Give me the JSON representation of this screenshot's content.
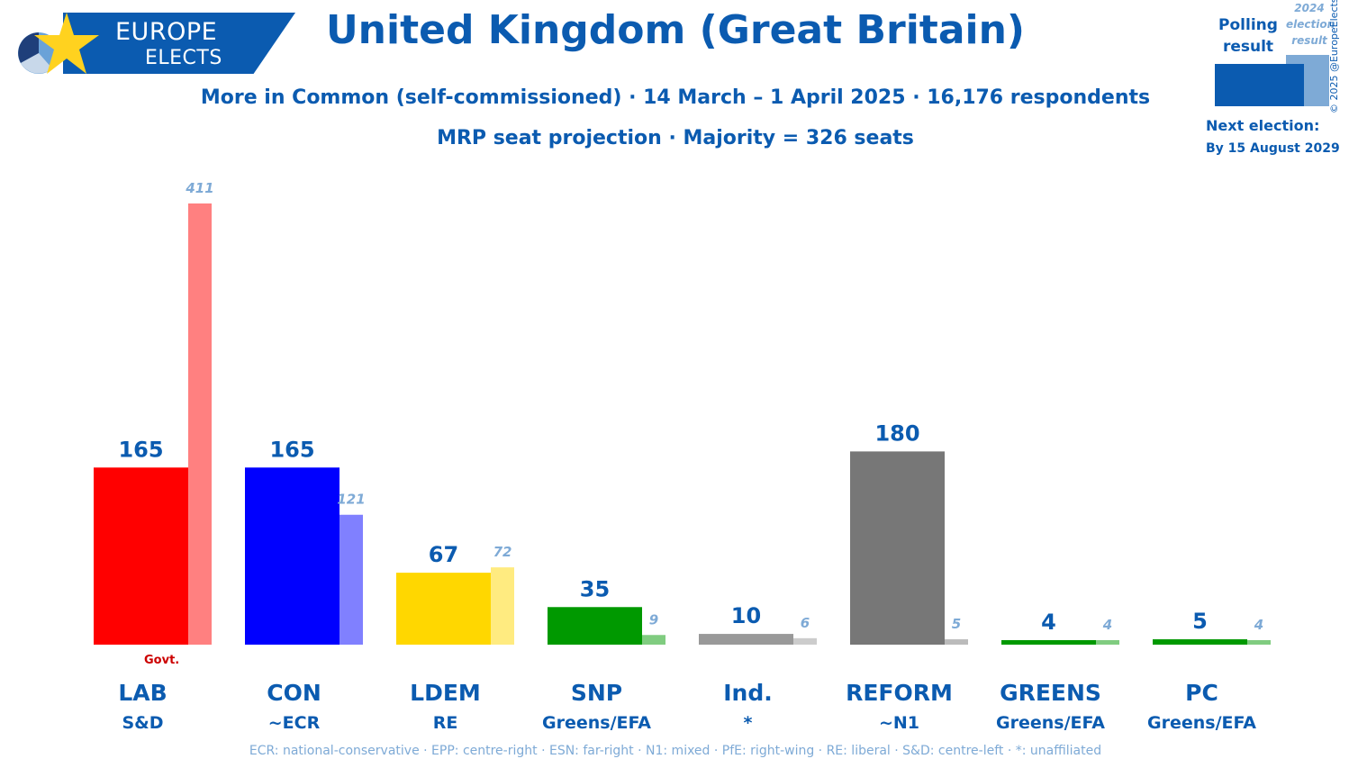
{
  "logo": {
    "line1": "EUROPE",
    "line2": "ELECTS"
  },
  "title": "United Kingdom (Great Britain)",
  "subtitle": "More in Common (self-commissioned) · 14 March – 1 April 2025 · 16,176 respondents",
  "subtitle2": "MRP seat projection · Majority = 326 seats",
  "legend": {
    "polling": "Polling result",
    "previous": "2024 election result"
  },
  "copyright": "© 2025 @EuropeElects",
  "next_election": {
    "label": "Next election:",
    "date": "By 15 August 2029"
  },
  "govt_label": "Govt.",
  "footnote": "ECR: national-conservative · EPP: centre-right · ESN: far-right · N1: mixed · PfE: right-wing · RE: liberal · S&D: centre-left · *: unaffiliated",
  "chart_data": {
    "type": "bar",
    "categories": [
      "LAB",
      "CON",
      "LDEM",
      "SNP",
      "Ind.",
      "REFORM",
      "GREENS",
      "PC"
    ],
    "groups": [
      "S&D",
      "~ECR",
      "RE",
      "Greens/EFA",
      "*",
      "~N1",
      "Greens/EFA",
      "Greens/EFA"
    ],
    "series": [
      {
        "name": "Polling result",
        "values": [
          165,
          165,
          67,
          35,
          10,
          180,
          4,
          5
        ]
      },
      {
        "name": "2024 election result",
        "values": [
          411,
          121,
          72,
          9,
          6,
          5,
          4,
          4
        ]
      }
    ],
    "colors": [
      "#ff0000",
      "#0000ff",
      "#ffd700",
      "#009900",
      "#999999",
      "#777777",
      "#009900",
      "#009900"
    ],
    "prev_colors": [
      "#ff8080",
      "#8080ff",
      "#ffeb80",
      "#80cc80",
      "#cccccc",
      "#bbbbbb",
      "#80cc80",
      "#80cc80"
    ],
    "ylim": [
      0,
      411
    ],
    "title": "MRP seat projection"
  }
}
